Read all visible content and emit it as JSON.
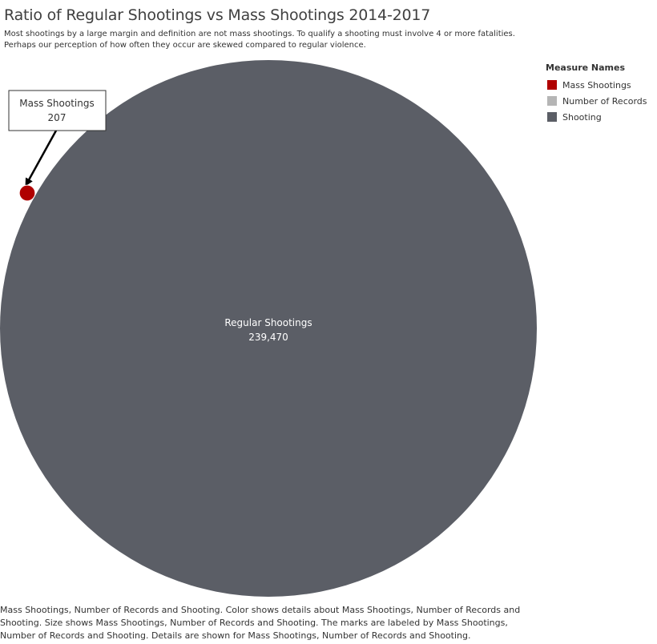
{
  "chart_data": {
    "type": "bubble",
    "title": "Ratio of Regular Shootings vs Mass Shootings 2014-2017",
    "subtitle_lines": [
      "Most shootings by a large margin and definition are not mass shootings. To qualify a shooting must involve 4 or more fatalities.",
      "Perhaps our perception of how often they occur are skewed compared to regular violence."
    ],
    "marks": [
      {
        "label": "Regular Shootings",
        "value": 239470,
        "value_text": "239,470",
        "measure": "Shooting",
        "color": "#5b5e66"
      },
      {
        "label": "Mass Shootings",
        "value": 207,
        "value_text": "207",
        "measure": "Mass Shootings",
        "color": "#b00000"
      }
    ],
    "legend": {
      "title": "Measure Names",
      "position": "top-right",
      "items": [
        {
          "label": "Mass Shootings",
          "color": "#b00000"
        },
        {
          "label": "Number of Records",
          "color": "#b5b5b5"
        },
        {
          "label": "Shooting",
          "color": "#5b5e66"
        }
      ]
    },
    "annotation": {
      "label": "Mass Shootings",
      "value_text": "207"
    },
    "footnote_lines": [
      "Mass Shootings, Number of Records and Shooting.  Color shows details about Mass Shootings, Number of Records and",
      "Shooting.  Size shows Mass Shootings, Number of Records and Shooting.  The marks are labeled by Mass Shootings,",
      "Number of Records and Shooting.  Details are shown for Mass Shootings, Number of Records and Shooting."
    ]
  }
}
